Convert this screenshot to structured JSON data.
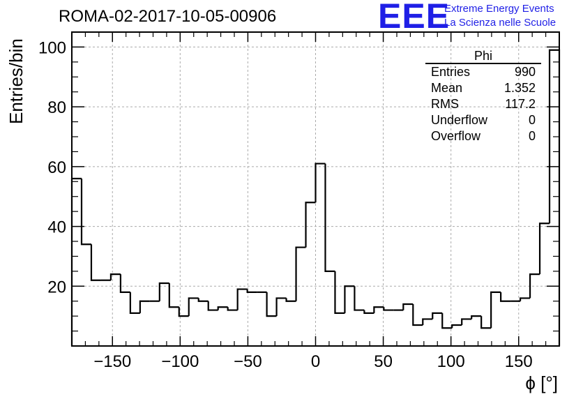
{
  "header": {
    "run_title": "ROMA-02-2017-10-05-00906",
    "logo_text": "EEE",
    "logo_line1": "Extreme Energy Events",
    "logo_line2": "La Scienza nelle Scuole",
    "logo_color": "#1f1fe6"
  },
  "stats": {
    "title": "Phi",
    "rows": [
      {
        "label": "Entries",
        "value": "990"
      },
      {
        "label": "Mean",
        "value": "1.352"
      },
      {
        "label": "RMS",
        "value": "117.2"
      },
      {
        "label": "Underflow",
        "value": "0"
      },
      {
        "label": "Overflow",
        "value": "0"
      }
    ]
  },
  "chart_data": {
    "type": "bar",
    "histogram": true,
    "xlabel": "ϕ [°]",
    "ylabel": "Entries/bin",
    "xlim": [
      -180,
      180
    ],
    "ylim": [
      0,
      105
    ],
    "bin_width": 7.2,
    "xticks": [
      -150,
      -100,
      -50,
      0,
      50,
      100,
      150
    ],
    "yticks": [
      20,
      40,
      60,
      80,
      100
    ],
    "grid": true,
    "values": [
      56,
      34,
      22,
      22,
      24,
      18,
      11,
      15,
      15,
      21,
      13,
      10,
      16,
      15,
      12,
      13,
      12,
      19,
      18,
      18,
      10,
      16,
      15,
      33,
      48,
      61,
      25,
      11,
      20,
      12,
      11,
      13,
      12,
      12,
      14,
      7,
      9,
      11,
      6,
      7,
      9,
      10,
      6,
      18,
      15,
      15,
      16,
      24,
      41,
      99
    ]
  }
}
